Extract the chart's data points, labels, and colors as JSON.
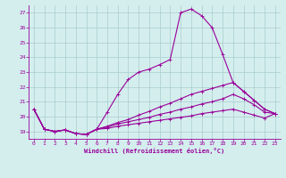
{
  "xlabel": "Windchill (Refroidissement éolien,°C)",
  "bg_color": "#d4eeee",
  "grid_color": "#aacccc",
  "line_color": "#990099",
  "spine_color": "#990099",
  "xlim": [
    -0.5,
    23.5
  ],
  "ylim": [
    18.5,
    27.5
  ],
  "yticks": [
    19,
    20,
    21,
    22,
    23,
    24,
    25,
    26,
    27
  ],
  "xticks": [
    0,
    1,
    2,
    3,
    4,
    5,
    6,
    7,
    8,
    9,
    10,
    11,
    12,
    13,
    14,
    15,
    16,
    17,
    18,
    19,
    20,
    21,
    22,
    23
  ],
  "lines": [
    {
      "x": [
        0,
        1,
        2,
        3,
        4,
        5,
        6,
        7,
        8,
        9,
        10,
        11,
        12,
        13,
        14,
        15,
        16,
        17,
        18,
        19,
        20,
        21,
        22,
        23
      ],
      "y": [
        20.5,
        19.15,
        19.0,
        19.1,
        18.85,
        18.8,
        19.15,
        20.3,
        21.5,
        22.5,
        23.0,
        23.2,
        23.5,
        23.85,
        27.0,
        27.25,
        26.8,
        26.0,
        24.2,
        22.3,
        21.7,
        21.1,
        20.5,
        20.2
      ]
    },
    {
      "x": [
        0,
        1,
        2,
        3,
        4,
        5,
        6,
        7,
        8,
        9,
        10,
        11,
        12,
        13,
        14,
        15,
        16,
        17,
        18,
        19,
        20,
        21,
        22,
        23
      ],
      "y": [
        20.5,
        19.15,
        19.0,
        19.1,
        18.85,
        18.8,
        19.15,
        19.35,
        19.6,
        19.8,
        20.1,
        20.35,
        20.65,
        20.9,
        21.2,
        21.5,
        21.7,
        21.9,
        22.1,
        22.3,
        21.7,
        21.1,
        20.5,
        20.2
      ]
    },
    {
      "x": [
        0,
        1,
        2,
        3,
        4,
        5,
        6,
        7,
        8,
        9,
        10,
        11,
        12,
        13,
        14,
        15,
        16,
        17,
        18,
        19,
        20,
        21,
        22,
        23
      ],
      "y": [
        20.5,
        19.15,
        19.0,
        19.1,
        18.85,
        18.8,
        19.15,
        19.3,
        19.5,
        19.65,
        19.8,
        19.95,
        20.15,
        20.3,
        20.5,
        20.65,
        20.85,
        21.0,
        21.2,
        21.5,
        21.2,
        20.8,
        20.3,
        20.2
      ]
    },
    {
      "x": [
        0,
        1,
        2,
        3,
        4,
        5,
        6,
        7,
        8,
        9,
        10,
        11,
        12,
        13,
        14,
        15,
        16,
        17,
        18,
        19,
        20,
        21,
        22,
        23
      ],
      "y": [
        20.5,
        19.15,
        19.0,
        19.1,
        18.85,
        18.8,
        19.15,
        19.2,
        19.35,
        19.45,
        19.55,
        19.65,
        19.75,
        19.85,
        19.95,
        20.05,
        20.2,
        20.3,
        20.4,
        20.5,
        20.3,
        20.1,
        19.9,
        20.2
      ]
    }
  ]
}
